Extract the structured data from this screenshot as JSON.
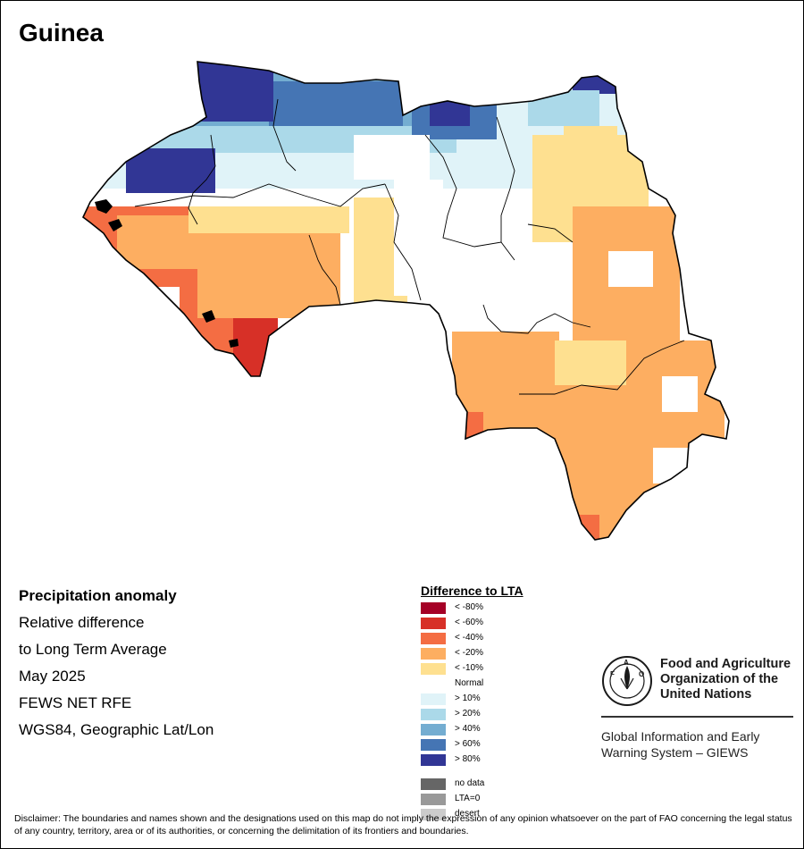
{
  "map": {
    "title": "Guinea"
  },
  "info": {
    "lines": [
      "Precipitation anomaly",
      "Relative difference",
      "to Long Term Average",
      "May 2025",
      "FEWS NET RFE",
      "WGS84, Geographic Lat/Lon"
    ]
  },
  "legend": {
    "title": "Difference to LTA",
    "classes": [
      {
        "label": "< -80%",
        "color": "#a50026"
      },
      {
        "label": "< -60%",
        "color": "#d73027"
      },
      {
        "label": "< -40%",
        "color": "#f46d43"
      },
      {
        "label": "< -20%",
        "color": "#fdae61"
      },
      {
        "label": "< -10%",
        "color": "#fee090"
      },
      {
        "label": "Normal",
        "color": "#ffffff"
      },
      {
        "label": "> 10%",
        "color": "#e0f3f8"
      },
      {
        "label": "> 20%",
        "color": "#abd9e9"
      },
      {
        "label": "> 40%",
        "color": "#74add1"
      },
      {
        "label": "> 60%",
        "color": "#4575b4"
      },
      {
        "label": "> 80%",
        "color": "#313695"
      }
    ],
    "extra": [
      {
        "label": "no data",
        "color": "#666666"
      },
      {
        "label": "LTA=0",
        "color": "#999999"
      },
      {
        "label": "desert",
        "color": "#cccccc"
      }
    ]
  },
  "fao": {
    "name_lines": [
      "Food and Agriculture",
      "Organization of the",
      "United Nations"
    ],
    "giews_lines": [
      "Global Information and Early",
      "Warning System – GIEWS"
    ]
  },
  "disclaimer": "Disclaimer: The boundaries and names shown and the designations used on this map do not imply the expression of any opinion whatsoever on the part of FAO concerning the legal status of any country, territory, area or of its authorities, or concerning the delimitation of its frontiers and boundaries."
}
